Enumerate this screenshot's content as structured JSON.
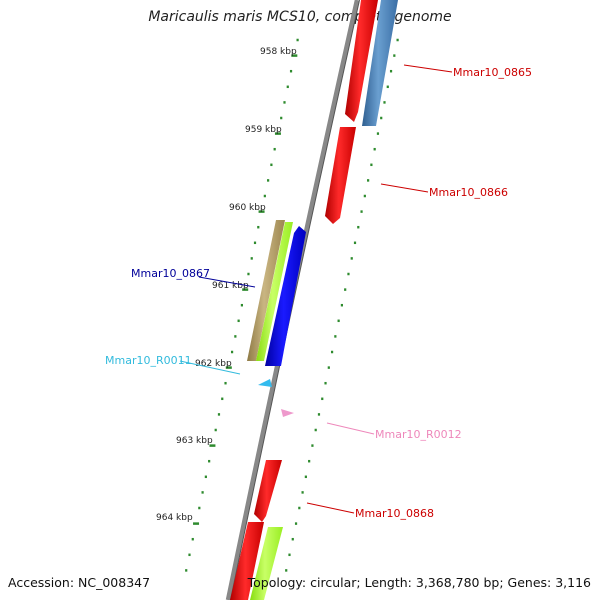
{
  "title": "Maricaulis maris MCS10, complete genome",
  "accession": "Accession: NC_008347",
  "topology": "Topology: circular; Length: 3,368,780 bp; Genes: 3,116",
  "ticks": [
    "958 kbp",
    "959 kbp",
    "960 kbp",
    "961 kbp",
    "962 kbp",
    "963 kbp",
    "964 kbp"
  ],
  "features": [
    {
      "label": "Mmar10_0865",
      "color": "#cc0000"
    },
    {
      "label": "Mmar10_0866",
      "color": "#cc0000"
    },
    {
      "label": "Mmar10_0867",
      "color": "#000099"
    },
    {
      "label": "Mmar10_R0011",
      "color": "#33bbdd"
    },
    {
      "label": "Mmar10_R0012",
      "color": "#ee88bb"
    },
    {
      "label": "Mmar10_0868",
      "color": "#cc0000"
    }
  ],
  "colors": {
    "backbone": "#888888",
    "tick": "#2e8b2e",
    "gene_red": "#ff0000",
    "gene_blue": "#0000ff",
    "gene_steelblue": "#4a7fb5",
    "gene_khaki": "#b5a06a",
    "gene_lime": "#aaff33",
    "rna_cyan": "#33bbee",
    "rna_pink": "#ee99cc"
  }
}
